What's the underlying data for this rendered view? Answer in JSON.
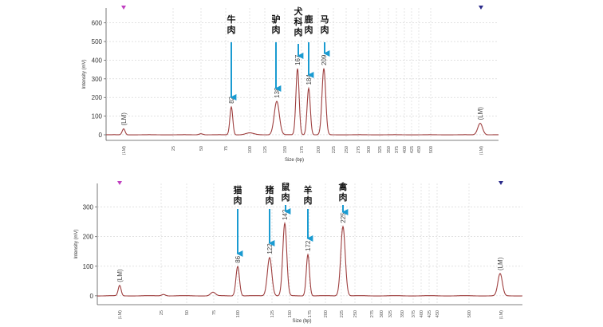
{
  "chart_data": [
    {
      "type": "line",
      "xlabel": "Size (bp)",
      "ylabel": "Intensity (mV)",
      "ylim": [
        -30,
        680
      ],
      "yticks": [
        0,
        100,
        200,
        300,
        400,
        500,
        600
      ],
      "x_tick_labels": [
        "25",
        "50",
        "75",
        "100",
        "125",
        "150",
        "175",
        "200",
        "225",
        "250",
        "275",
        "300",
        "325",
        "350",
        "375",
        "400",
        "425",
        "450",
        "500"
      ],
      "grid": true,
      "series": [
        {
          "values": [
            {
              "x": 0.0,
              "y": 0
            },
            {
              "x": 0.05,
              "y": 2
            },
            {
              "x": 0.05,
              "y": 32
            },
            {
              "x": 0.22,
              "y": 5
            },
            {
              "x": 0.34,
              "y": 10
            },
            {
              "x": 0.45,
              "y": 150
            },
            {
              "x": 0.55,
              "y": 20
            },
            {
              "x": 0.7,
              "y": 182
            },
            {
              "x": 0.78,
              "y": 355
            },
            {
              "x": 0.82,
              "y": 250
            },
            {
              "x": 0.86,
              "y": 355
            },
            {
              "x": 1.55,
              "y": 0
            },
            {
              "x": 1.63,
              "y": 62
            }
          ]
        }
      ],
      "peak_labels": [
        "(LM)",
        "82",
        "138",
        "167",
        "184",
        "209",
        "(LM)"
      ],
      "x_end_labels": [
        "(LM)",
        "(LM)"
      ],
      "annotations": [
        {
          "text": [
            "牛",
            "肉"
          ],
          "peak": "82"
        },
        {
          "text": [
            "驴",
            "肉"
          ],
          "peak": "138"
        },
        {
          "text": [
            "犬",
            "科",
            "肉"
          ],
          "peak": "167"
        },
        {
          "text": [
            "鹿",
            "肉"
          ],
          "peak": "184"
        },
        {
          "text": [
            "马",
            "肉"
          ],
          "peak": "209"
        }
      ],
      "colors": {
        "trace": "#9e3f3f",
        "arrow": "#1a9bd1",
        "marker_left": "#c040c0",
        "marker_right": "#2b2b8a"
      }
    },
    {
      "type": "line",
      "xlabel": "Size (bp)",
      "ylabel": "Intensity (mV)",
      "ylim": [
        -30,
        380
      ],
      "yticks": [
        0,
        100,
        200,
        300
      ],
      "x_tick_labels": [
        "25",
        "50",
        "75",
        "100",
        "125",
        "150",
        "175",
        "200",
        "225",
        "250",
        "275",
        "300",
        "325",
        "350",
        "375",
        "400",
        "425",
        "450",
        "500"
      ],
      "grid": true,
      "series": [
        {
          "values": [
            {
              "x": 0.05,
              "y": 35
            },
            {
              "x": 0.44,
              "y": 100
            },
            {
              "x": 0.58,
              "y": 130
            },
            {
              "x": 0.64,
              "y": 245
            },
            {
              "x": 0.72,
              "y": 140
            },
            {
              "x": 0.88,
              "y": 235
            },
            {
              "x": 1.63,
              "y": 75
            }
          ]
        }
      ],
      "peak_labels": [
        "(LM)",
        "86",
        "122",
        "142",
        "172",
        "225",
        "(LM)"
      ],
      "x_end_labels": [
        "(LM)",
        "(LM)"
      ],
      "annotations": [
        {
          "text": [
            "猫",
            "肉"
          ],
          "peak": "86"
        },
        {
          "text": [
            "猪",
            "肉"
          ],
          "peak": "122"
        },
        {
          "text": [
            "鼠",
            "肉"
          ],
          "peak": "142"
        },
        {
          "text": [
            "羊",
            "肉"
          ],
          "peak": "172"
        },
        {
          "text": [
            "禽",
            "肉"
          ],
          "peak": "225"
        }
      ],
      "colors": {
        "trace": "#9e3f3f",
        "arrow": "#1a9bd1",
        "marker_left": "#c040c0",
        "marker_right": "#2b2b8a"
      }
    }
  ]
}
